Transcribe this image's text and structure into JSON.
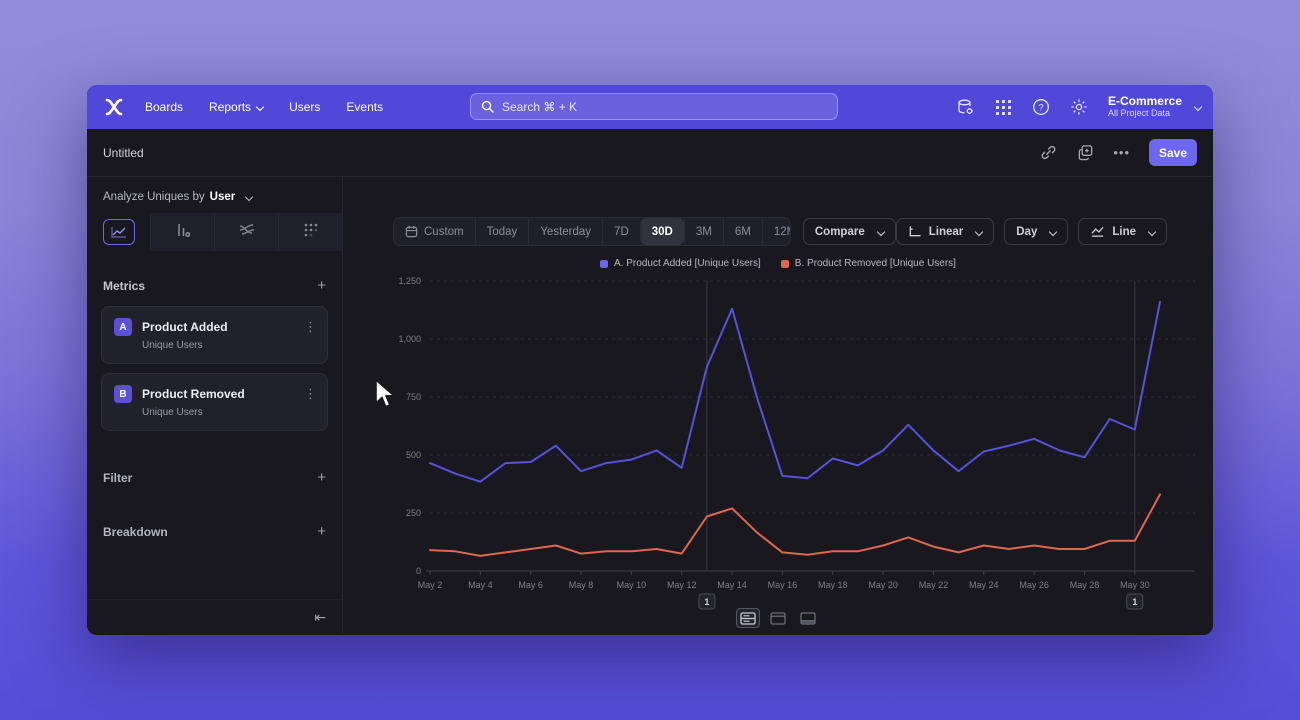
{
  "nav": {
    "brand": "mixpanel-logo",
    "items": [
      "Boards",
      "Reports",
      "Users",
      "Events"
    ],
    "search_placeholder": "Search  ⌘ + K",
    "project_name": "E-Commerce",
    "project_scope": "All Project Data"
  },
  "report_bar": {
    "title": "Untitled",
    "menu_ellipsis": "•••",
    "save_label": "Save"
  },
  "sidebar": {
    "analyze_label": "Analyze Uniques by",
    "analyze_value": "User",
    "metrics_title": "Metrics",
    "add_symbol": "+",
    "metrics": [
      {
        "badge": "A",
        "name": "Product Added",
        "subtitle": "Unique Users",
        "menu": "⋮"
      },
      {
        "badge": "B",
        "name": "Product Removed",
        "subtitle": "Unique Users",
        "menu": "⋮"
      }
    ],
    "filter_label": "Filter",
    "breakdown_label": "Breakdown",
    "collapse_symbol": "⇤"
  },
  "toolbar": {
    "ranges": [
      "Custom",
      "Today",
      "Yesterday",
      "7D",
      "30D",
      "3M",
      "6M",
      "12M"
    ],
    "active_range": "30D",
    "compare": "Compare",
    "scale": "Linear",
    "interval": "Day",
    "chart_type": "Line"
  },
  "legend": [
    {
      "label": "A. Product Added [Unique Users]",
      "color": "#6c63e9"
    },
    {
      "label": "B. Product Removed [Unique Users]",
      "color": "#e0664d"
    }
  ],
  "chart_data": {
    "type": "line",
    "x": [
      "May 2",
      "May 3",
      "May 4",
      "May 5",
      "May 6",
      "May 7",
      "May 8",
      "May 9",
      "May 10",
      "May 11",
      "May 12",
      "May 13",
      "May 14",
      "May 15",
      "May 16",
      "May 17",
      "May 18",
      "May 19",
      "May 20",
      "May 21",
      "May 22",
      "May 23",
      "May 24",
      "May 25",
      "May 26",
      "May 27",
      "May 28",
      "May 29",
      "May 30",
      "May 31"
    ],
    "x_tick_labels": [
      "May 2",
      "May 4",
      "May 6",
      "May 8",
      "May 10",
      "May 12",
      "May 14",
      "May 16",
      "May 18",
      "May 20",
      "May 22",
      "May 24",
      "May 26",
      "May 28",
      "May 30"
    ],
    "yticks": [
      0,
      250,
      500,
      750,
      1000,
      1250
    ],
    "ytick_labels": [
      "0",
      "250",
      "500",
      "750",
      "1,000",
      "1,250"
    ],
    "ylim": [
      0,
      1250
    ],
    "grid": "horizontal-dashed",
    "legend_position": "top-center",
    "series": [
      {
        "name": "A. Product Added [Unique Users]",
        "color": "#5a50dc",
        "values": [
          465,
          420,
          385,
          465,
          470,
          540,
          430,
          465,
          480,
          520,
          445,
          880,
          1130,
          745,
          410,
          400,
          485,
          455,
          520,
          630,
          520,
          430,
          515,
          540,
          570,
          520,
          490,
          655,
          610,
          1160
        ]
      },
      {
        "name": "B. Product Removed [Unique Users]",
        "color": "#e0664d",
        "values": [
          90,
          85,
          65,
          80,
          95,
          110,
          75,
          85,
          85,
          95,
          75,
          235,
          270,
          165,
          80,
          70,
          85,
          85,
          110,
          145,
          105,
          80,
          110,
          95,
          110,
          95,
          95,
          130,
          130,
          330
        ]
      }
    ],
    "annotations": [
      {
        "label": "1",
        "x": "May 13"
      },
      {
        "label": "1",
        "x": "May 30"
      }
    ]
  },
  "footer_toggles": [
    "chart-and-table",
    "chart-only",
    "table-only"
  ],
  "colors": {
    "accent": "#6e67f1",
    "navbar": "#5148d9",
    "window_bg": "#18181e",
    "series_a": "#5a50dc",
    "series_b": "#e0664d",
    "grid_line": "#2d2d36",
    "annotation_line": "#36363f"
  }
}
